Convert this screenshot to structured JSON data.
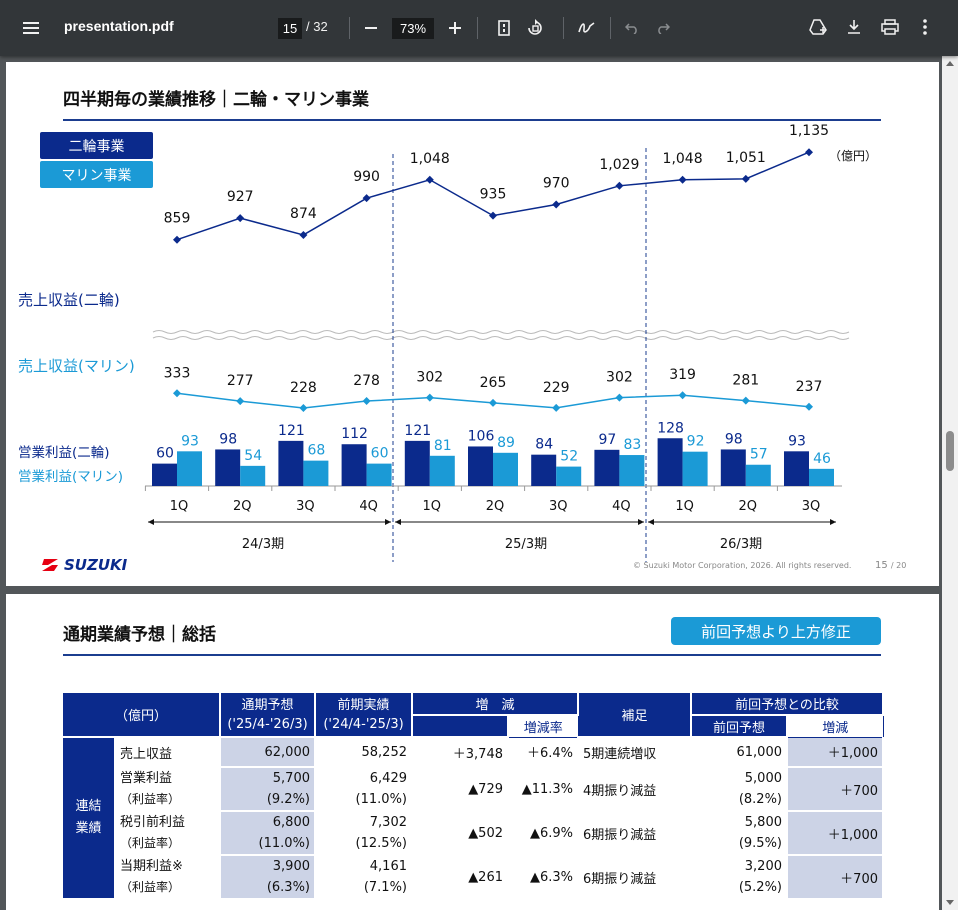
{
  "toolbar": {
    "title": "presentation.pdf",
    "page_current": "15",
    "page_total": "/ 32",
    "zoom": "73%"
  },
  "slide1": {
    "title": "四半期毎の業績推移｜二輪・マリン事業",
    "legend_moto": "二輪事業",
    "legend_marine": "マリン事業",
    "unit": "（億円）",
    "label_rev_moto": "売上収益(二輪)",
    "label_rev_marine": "売上収益(マリン)",
    "label_op_moto": "営業利益(二輪)",
    "label_op_marine": "営業利益(マリン)",
    "periods": [
      "24/3期",
      "25/3期",
      "26/3期"
    ],
    "logo": "SUZUKI",
    "copyright": "© Suzuki Motor Corporation, 2026. All rights reserved.",
    "page_no": "15",
    "page_total": "/ 20"
  },
  "chart_data": {
    "type": "line",
    "categories": [
      "1Q",
      "2Q",
      "3Q",
      "4Q",
      "1Q",
      "2Q",
      "3Q",
      "4Q",
      "1Q",
      "2Q",
      "3Q"
    ],
    "series": [
      {
        "name": "売上収益(二輪)",
        "type": "line",
        "values": [
          859,
          927,
          874,
          990,
          1048,
          935,
          970,
          1029,
          1048,
          1051,
          1135
        ],
        "color": "#0b2a8c"
      },
      {
        "name": "売上収益(マリン)",
        "type": "line",
        "values": [
          333,
          277,
          228,
          278,
          302,
          265,
          229,
          302,
          319,
          281,
          237
        ],
        "color": "#1b9ad6"
      },
      {
        "name": "営業利益(二輪)",
        "type": "bar",
        "values": [
          60,
          98,
          121,
          112,
          121,
          106,
          84,
          97,
          128,
          98,
          93
        ],
        "color": "#0b2a8c"
      },
      {
        "name": "営業利益(マリン)",
        "type": "bar",
        "values": [
          93,
          54,
          68,
          60,
          81,
          89,
          52,
          83,
          92,
          57,
          46
        ],
        "color": "#1b9ad6"
      }
    ]
  },
  "slide2": {
    "title": "通期業績予想｜総括",
    "badge": "前回予想より上方修正",
    "h_unit": "（億円）",
    "h_fy": "通期予想",
    "h_fy_range": "('25/4-'26/3)",
    "h_prev": "前期実績",
    "h_prev_range": "('24/4-'25/3)",
    "h_diff": "増　減",
    "h_rate": "増減率",
    "h_note": "補足",
    "h_cmp": "前回予想との比較",
    "h_cmp_prev": "前回予想",
    "h_cmp_diff": "増減",
    "group": "連結\n業績",
    "rows": [
      {
        "label": "売上収益",
        "sub": "",
        "fy": "62,000",
        "fy_sub": "",
        "prev": "58,252",
        "prev_sub": "",
        "diff": "＋3,748",
        "rate": "＋6.4%",
        "note": "5期連続増収",
        "cmp": "61,000",
        "cmp_sub": "",
        "cmp_diff": "＋1,000"
      },
      {
        "label": "営業利益",
        "sub": "（利益率）",
        "fy": "5,700",
        "fy_sub": "(9.2%)",
        "prev": "6,429",
        "prev_sub": "(11.0%)",
        "diff": "▲729",
        "rate": "▲11.3%",
        "note": "4期振り減益",
        "cmp": "5,000",
        "cmp_sub": "(8.2%)",
        "cmp_diff": "＋700"
      },
      {
        "label": "税引前利益",
        "sub": "（利益率）",
        "fy": "6,800",
        "fy_sub": "(11.0%)",
        "prev": "7,302",
        "prev_sub": "(12.5%)",
        "diff": "▲502",
        "rate": "▲6.9%",
        "note": "6期振り減益",
        "cmp": "5,800",
        "cmp_sub": "(9.5%)",
        "cmp_diff": "＋1,000"
      },
      {
        "label": "当期利益※",
        "sub": "（利益率）",
        "fy": "3,900",
        "fy_sub": "(6.3%)",
        "prev": "4,161",
        "prev_sub": "(7.1%)",
        "diff": "▲261",
        "rate": "▲6.3%",
        "note": "6期振り減益",
        "cmp": "3,200",
        "cmp_sub": "(5.2%)",
        "cmp_diff": "＋700"
      }
    ]
  }
}
